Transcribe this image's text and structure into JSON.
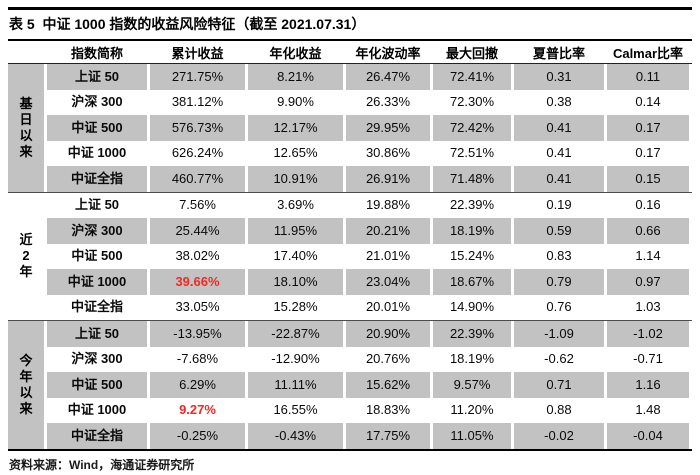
{
  "title": "表 5  中证 1000 指数的收益风险特征（截至 2021.07.31）",
  "header": {
    "columns": [
      "指数简称",
      "累计收益",
      "年化收益",
      "年化波动率",
      "最大回撤",
      "夏普比率",
      "Calmar比率"
    ]
  },
  "table": {
    "groups": [
      {
        "label": "基日以来",
        "chars": [
          "基",
          "日",
          "以",
          "来"
        ],
        "rows": [
          {
            "name": "上证 50",
            "values": [
              "271.75%",
              "8.21%",
              "26.47%",
              "72.41%",
              "0.31",
              "0.11"
            ]
          },
          {
            "name": "沪深 300",
            "values": [
              "381.12%",
              "9.90%",
              "26.33%",
              "72.30%",
              "0.38",
              "0.14"
            ]
          },
          {
            "name": "中证 500",
            "values": [
              "576.73%",
              "12.17%",
              "29.95%",
              "72.42%",
              "0.41",
              "0.17"
            ]
          },
          {
            "name": "中证 1000",
            "values": [
              "626.24%",
              "12.65%",
              "30.86%",
              "72.51%",
              "0.41",
              "0.17"
            ]
          },
          {
            "name": "中证全指",
            "values": [
              "460.77%",
              "10.91%",
              "26.91%",
              "71.48%",
              "0.41",
              "0.15"
            ]
          }
        ]
      },
      {
        "label": "近2年",
        "chars": [
          "近",
          "2",
          "年"
        ],
        "rows": [
          {
            "name": "上证 50",
            "values": [
              "7.56%",
              "3.69%",
              "19.88%",
              "22.39%",
              "0.19",
              "0.16"
            ]
          },
          {
            "name": "沪深 300",
            "values": [
              "25.44%",
              "11.95%",
              "20.21%",
              "18.19%",
              "0.59",
              "0.66"
            ]
          },
          {
            "name": "中证 500",
            "values": [
              "38.02%",
              "17.40%",
              "21.01%",
              "15.24%",
              "0.83",
              "1.14"
            ]
          },
          {
            "name": "中证 1000",
            "values": [
              "39.66%",
              "18.10%",
              "23.04%",
              "18.67%",
              "0.79",
              "0.97"
            ],
            "highlight": 0
          },
          {
            "name": "中证全指",
            "values": [
              "33.05%",
              "15.28%",
              "20.01%",
              "14.90%",
              "0.76",
              "1.03"
            ]
          }
        ]
      },
      {
        "label": "今年以来",
        "chars": [
          "今",
          "年",
          "以",
          "来"
        ],
        "rows": [
          {
            "name": "上证 50",
            "values": [
              "-13.95%",
              "-22.87%",
              "20.90%",
              "22.39%",
              "-1.09",
              "-1.02"
            ]
          },
          {
            "name": "沪深 300",
            "values": [
              "-7.68%",
              "-12.90%",
              "20.76%",
              "18.19%",
              "-0.62",
              "-0.71"
            ]
          },
          {
            "name": "中证 500",
            "values": [
              "6.29%",
              "11.11%",
              "15.62%",
              "9.57%",
              "0.71",
              "1.16"
            ]
          },
          {
            "name": "中证 1000",
            "values": [
              "9.27%",
              "16.55%",
              "18.83%",
              "11.20%",
              "0.88",
              "1.48"
            ],
            "highlight": 0
          },
          {
            "name": "中证全指",
            "values": [
              "-0.25%",
              "-0.43%",
              "17.75%",
              "11.05%",
              "-0.02",
              "-0.04"
            ]
          }
        ]
      }
    ]
  },
  "footer": {
    "source": "资料来源：Wind，海通证券研究所"
  },
  "colors": {
    "row_shade": "#c2c2c2",
    "highlight_red": "#ee2c23",
    "rule_black": "#000000"
  }
}
